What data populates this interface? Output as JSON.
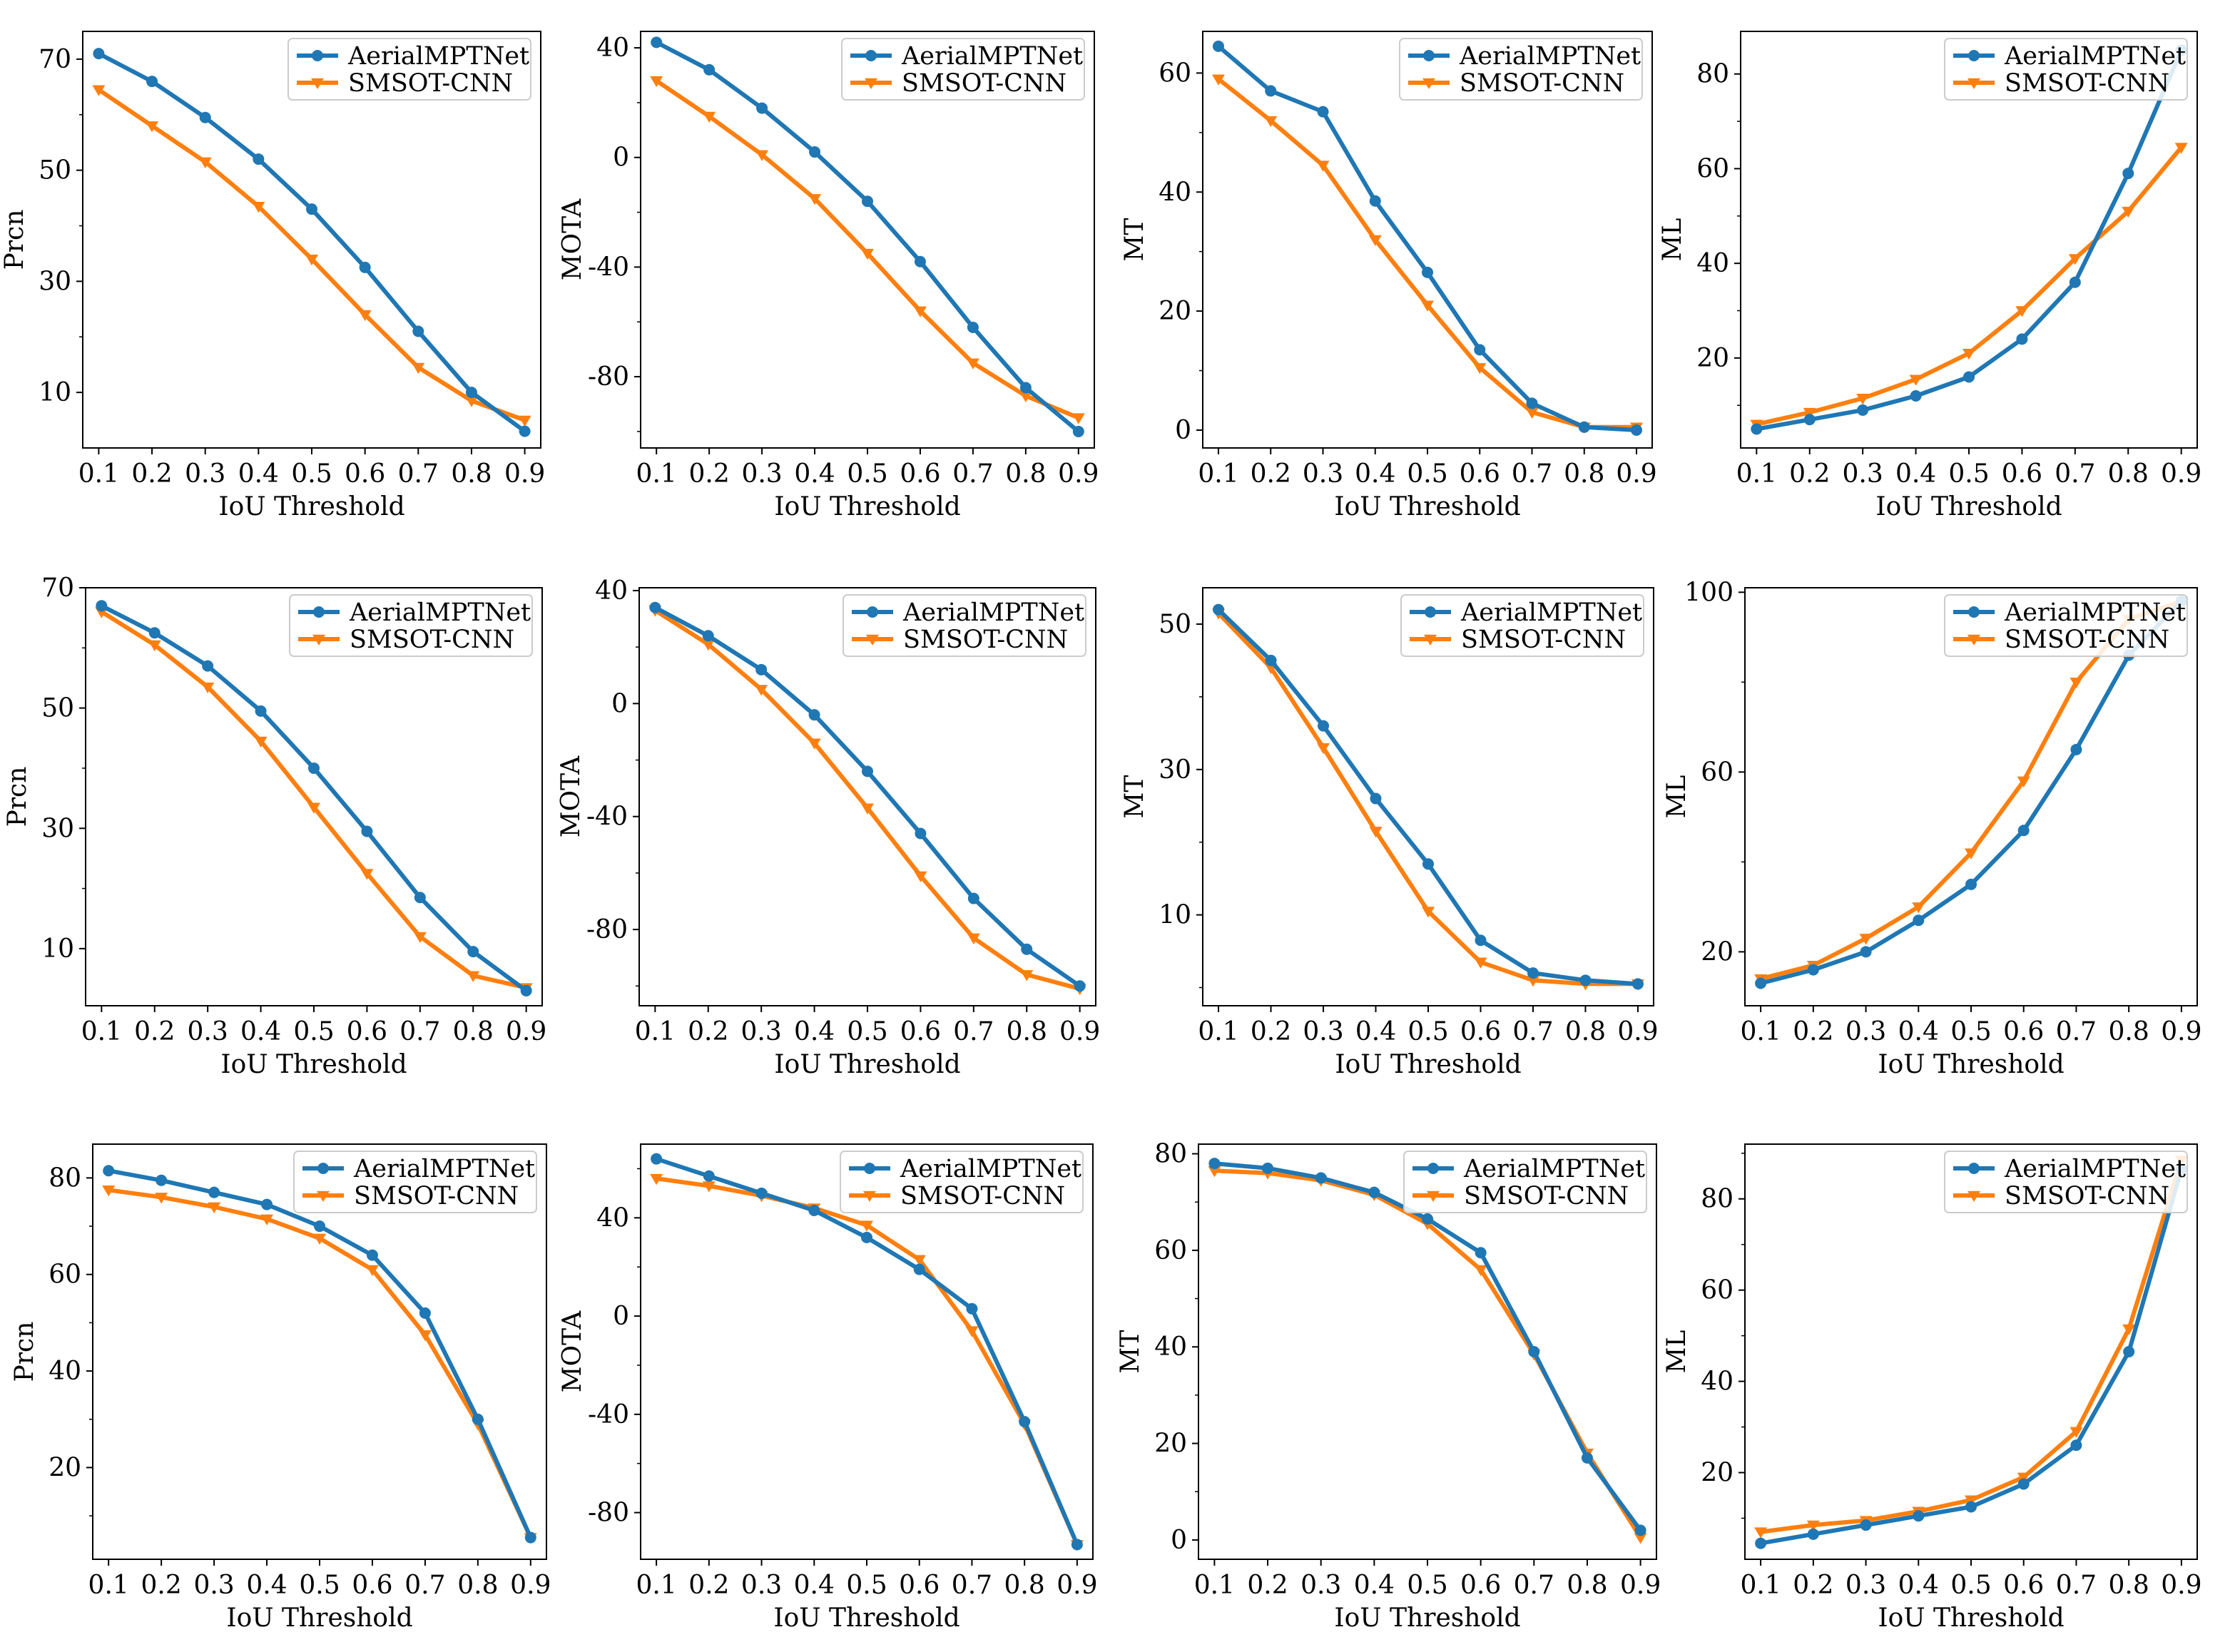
{
  "colors": {
    "aerial": "#1f77b4",
    "smsot": "#ff7f0e",
    "legend_border": "#cccccc"
  },
  "series_names": [
    "AerialMPTNet",
    "SMSOT-CNN"
  ],
  "chart_data": [
    {
      "type": "line",
      "title": "",
      "xlabel": "IoU Threshold",
      "ylabel": "Prcn",
      "x": [
        0.1,
        0.2,
        0.3,
        0.4,
        0.5,
        0.6,
        0.7,
        0.8,
        0.9
      ],
      "xlim": [
        0.07,
        0.93
      ],
      "ylim": [
        0,
        75
      ],
      "yticks": [
        10,
        30,
        50,
        70
      ],
      "legend": "top-right",
      "series": [
        {
          "name": "AerialMPTNet",
          "values": [
            71,
            66,
            59.5,
            52,
            43,
            32.5,
            21,
            10,
            3
          ]
        },
        {
          "name": "SMSOT-CNN",
          "values": [
            64.5,
            58,
            51.5,
            43.5,
            34,
            24,
            14.5,
            8.5,
            5
          ]
        }
      ]
    },
    {
      "type": "line",
      "title": "",
      "xlabel": "IoU Threshold",
      "ylabel": "MOTA",
      "x": [
        0.1,
        0.2,
        0.3,
        0.4,
        0.5,
        0.6,
        0.7,
        0.8,
        0.9
      ],
      "xlim": [
        0.07,
        0.93
      ],
      "ylim": [
        -106,
        46
      ],
      "yticks": [
        -80,
        -40,
        0,
        40
      ],
      "legend": "top-right",
      "series": [
        {
          "name": "AerialMPTNet",
          "values": [
            42,
            32,
            18,
            2,
            -16,
            -38,
            -62,
            -84,
            -100
          ]
        },
        {
          "name": "SMSOT-CNN",
          "values": [
            28,
            15,
            1,
            -15,
            -35,
            -56,
            -75,
            -87,
            -95
          ]
        }
      ]
    },
    {
      "type": "line",
      "title": "",
      "xlabel": "IoU Threshold",
      "ylabel": "MT",
      "x": [
        0.1,
        0.2,
        0.3,
        0.4,
        0.5,
        0.6,
        0.7,
        0.8,
        0.9
      ],
      "xlim": [
        0.07,
        0.93
      ],
      "ylim": [
        -3,
        67
      ],
      "yticks": [
        0,
        20,
        40,
        60
      ],
      "legend": "top-right",
      "series": [
        {
          "name": "AerialMPTNet",
          "values": [
            64.5,
            57,
            53.5,
            38.5,
            26.5,
            13.5,
            4.5,
            0.5,
            0
          ]
        },
        {
          "name": "SMSOT-CNN",
          "values": [
            59,
            52,
            44.5,
            32,
            21,
            10.5,
            3,
            0.5,
            0.5
          ]
        }
      ]
    },
    {
      "type": "line",
      "title": "",
      "xlabel": "IoU Threshold",
      "ylabel": "ML",
      "x": [
        0.1,
        0.2,
        0.3,
        0.4,
        0.5,
        0.6,
        0.7,
        0.8,
        0.9
      ],
      "xlim": [
        0.07,
        0.93
      ],
      "ylim": [
        1,
        89
      ],
      "yticks": [
        20,
        40,
        60,
        80
      ],
      "legend": "top-right",
      "series": [
        {
          "name": "AerialMPTNet",
          "values": [
            5,
            7,
            9,
            12,
            16,
            24,
            36,
            59,
            85
          ]
        },
        {
          "name": "SMSOT-CNN",
          "values": [
            6,
            8.5,
            11.5,
            15.5,
            21,
            30,
            41,
            51,
            64.5
          ]
        }
      ]
    },
    {
      "type": "line",
      "title": "",
      "xlabel": "IoU Threshold",
      "ylabel": "Prcn",
      "x": [
        0.1,
        0.2,
        0.3,
        0.4,
        0.5,
        0.6,
        0.7,
        0.8,
        0.9
      ],
      "xlim": [
        0.07,
        0.93
      ],
      "ylim": [
        0.5,
        70
      ],
      "yticks": [
        10,
        30,
        50,
        70
      ],
      "legend": "top-right",
      "series": [
        {
          "name": "AerialMPTNet",
          "values": [
            67,
            62.5,
            57,
            49.5,
            40,
            29.5,
            18.5,
            9.5,
            3
          ]
        },
        {
          "name": "SMSOT-CNN",
          "values": [
            66,
            60.5,
            53.5,
            44.5,
            33.5,
            22.5,
            12,
            5.5,
            3.5
          ]
        }
      ]
    },
    {
      "type": "line",
      "title": "",
      "xlabel": "IoU Threshold",
      "ylabel": "MOTA",
      "x": [
        0.1,
        0.2,
        0.3,
        0.4,
        0.5,
        0.6,
        0.7,
        0.8,
        0.9
      ],
      "xlim": [
        0.07,
        0.93
      ],
      "ylim": [
        -107,
        41
      ],
      "yticks": [
        -80,
        -40,
        0,
        40
      ],
      "legend": "top-right",
      "series": [
        {
          "name": "AerialMPTNet",
          "values": [
            34,
            24,
            12,
            -4,
            -24,
            -46,
            -69,
            -87,
            -100
          ]
        },
        {
          "name": "SMSOT-CNN",
          "values": [
            33,
            21,
            5,
            -14,
            -37,
            -61,
            -83,
            -96,
            -101
          ]
        }
      ]
    },
    {
      "type": "line",
      "title": "",
      "xlabel": "IoU Threshold",
      "ylabel": "MT",
      "x": [
        0.1,
        0.2,
        0.3,
        0.4,
        0.5,
        0.6,
        0.7,
        0.8,
        0.9
      ],
      "xlim": [
        0.07,
        0.93
      ],
      "ylim": [
        -2.5,
        55
      ],
      "yticks": [
        10,
        30,
        50
      ],
      "legend": "top-right",
      "series": [
        {
          "name": "AerialMPTNet",
          "values": [
            52,
            45,
            36,
            26,
            17,
            6.5,
            2,
            1,
            0.5
          ]
        },
        {
          "name": "SMSOT-CNN",
          "values": [
            51.5,
            44,
            33,
            21.5,
            10.5,
            3.5,
            1,
            0.5,
            0.5
          ]
        }
      ]
    },
    {
      "type": "line",
      "title": "",
      "xlabel": "IoU Threshold",
      "ylabel": "ML",
      "x": [
        0.1,
        0.2,
        0.3,
        0.4,
        0.5,
        0.6,
        0.7,
        0.8,
        0.9
      ],
      "xlim": [
        0.07,
        0.93
      ],
      "ylim": [
        8,
        101
      ],
      "yticks": [
        20,
        60,
        100
      ],
      "legend": "top-right",
      "series": [
        {
          "name": "AerialMPTNet",
          "values": [
            13,
            16,
            20,
            27,
            35,
            47,
            65,
            86,
            98
          ]
        },
        {
          "name": "SMSOT-CNN",
          "values": [
            14,
            17,
            23,
            30,
            42,
            58,
            80,
            94,
            98
          ]
        }
      ]
    },
    {
      "type": "line",
      "title": "",
      "xlabel": "IoU Threshold",
      "ylabel": "Prcn",
      "x": [
        0.1,
        0.2,
        0.3,
        0.4,
        0.5,
        0.6,
        0.7,
        0.8,
        0.9
      ],
      "xlim": [
        0.07,
        0.93
      ],
      "ylim": [
        1,
        87
      ],
      "yticks": [
        20,
        40,
        60,
        80
      ],
      "legend": "top-right",
      "series": [
        {
          "name": "AerialMPTNet",
          "values": [
            81.5,
            79.5,
            77,
            74.5,
            70,
            64,
            52,
            30,
            5.5
          ]
        },
        {
          "name": "SMSOT-CNN",
          "values": [
            77.5,
            76,
            74,
            71.5,
            67.5,
            61,
            47.5,
            29,
            5.5
          ]
        }
      ]
    },
    {
      "type": "line",
      "title": "",
      "xlabel": "IoU Threshold",
      "ylabel": "MOTA",
      "x": [
        0.1,
        0.2,
        0.3,
        0.4,
        0.5,
        0.6,
        0.7,
        0.8,
        0.9
      ],
      "xlim": [
        0.07,
        0.93
      ],
      "ylim": [
        -99,
        70
      ],
      "yticks": [
        -80,
        -40,
        0,
        40
      ],
      "legend": "top-right",
      "series": [
        {
          "name": "AerialMPTNet",
          "values": [
            64,
            57,
            50,
            43,
            32,
            19,
            3,
            -43,
            -93
          ]
        },
        {
          "name": "SMSOT-CNN",
          "values": [
            56,
            53,
            49,
            44,
            37,
            23,
            -6,
            -44,
            -93
          ]
        }
      ]
    },
    {
      "type": "line",
      "title": "",
      "xlabel": "IoU Threshold",
      "ylabel": "MT",
      "x": [
        0.1,
        0.2,
        0.3,
        0.4,
        0.5,
        0.6,
        0.7,
        0.8,
        0.9
      ],
      "xlim": [
        0.07,
        0.93
      ],
      "ylim": [
        -4,
        82
      ],
      "yticks": [
        0,
        20,
        40,
        60,
        80
      ],
      "legend": "top-right",
      "series": [
        {
          "name": "AerialMPTNet",
          "values": [
            78,
            77,
            75,
            72,
            66.5,
            59.5,
            39,
            17,
            2
          ]
        },
        {
          "name": "SMSOT-CNN",
          "values": [
            76.5,
            76,
            74.5,
            71.5,
            65.5,
            56,
            38.5,
            18,
            0.5
          ]
        }
      ]
    },
    {
      "type": "line",
      "title": "",
      "xlabel": "IoU Threshold",
      "ylabel": "ML",
      "x": [
        0.1,
        0.2,
        0.3,
        0.4,
        0.5,
        0.6,
        0.7,
        0.8,
        0.9
      ],
      "xlim": [
        0.07,
        0.93
      ],
      "ylim": [
        1,
        92
      ],
      "yticks": [
        20,
        40,
        60,
        80
      ],
      "legend": "top-right",
      "series": [
        {
          "name": "AerialMPTNet",
          "values": [
            4.5,
            6.5,
            8.5,
            10.5,
            12.5,
            17.5,
            26,
            46.5,
            86.5
          ]
        },
        {
          "name": "SMSOT-CNN",
          "values": [
            7,
            8.5,
            9.5,
            11.5,
            14,
            19,
            29,
            51.5,
            88.5
          ]
        }
      ]
    }
  ]
}
